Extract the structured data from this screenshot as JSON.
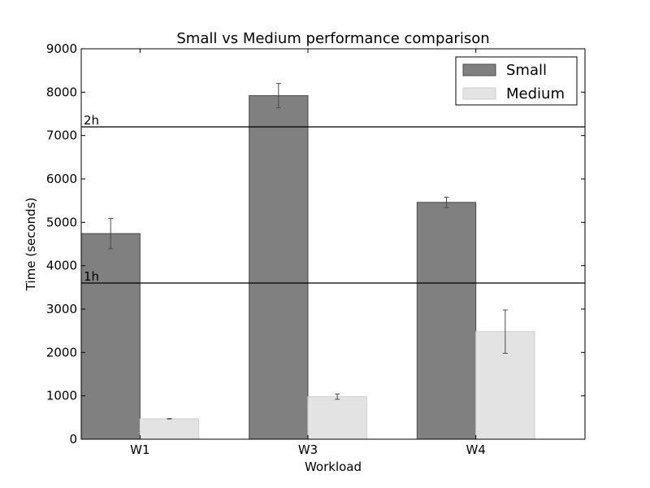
{
  "chart_data": {
    "type": "bar",
    "title": "Small vs Medium performance comparison",
    "xlabel": "Workload",
    "ylabel": "Time (seconds)",
    "ylim": [
      0,
      9000
    ],
    "yticks": [
      0,
      1000,
      2000,
      3000,
      4000,
      5000,
      6000,
      7000,
      8000,
      9000
    ],
    "categories": [
      "W1",
      "W3",
      "W4"
    ],
    "series": [
      {
        "name": "Small",
        "color": "#808080",
        "edge_color": "#4a4a4a",
        "values": [
          4740,
          7920,
          5460
        ],
        "errors": [
          350,
          280,
          120
        ]
      },
      {
        "name": "Medium",
        "color": "#e3e3e3",
        "edge_color": "#cfcfcf",
        "values": [
          470,
          980,
          2480
        ],
        "errors": [
          5,
          60,
          500
        ]
      }
    ],
    "reference_lines": [
      {
        "label": "1h",
        "value": 3600
      },
      {
        "label": "2h",
        "value": 7200
      }
    ],
    "legend_position": "top-right",
    "grid": false
  }
}
